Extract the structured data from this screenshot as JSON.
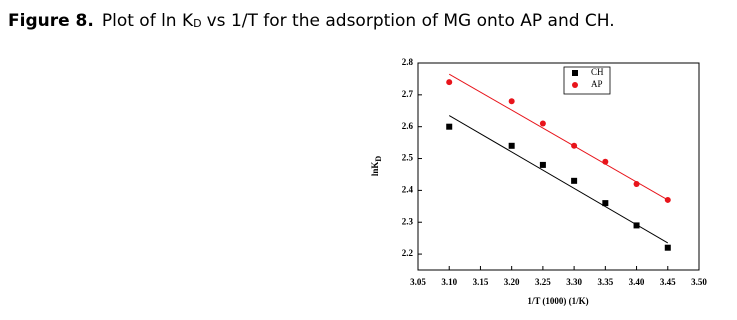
{
  "caption": {
    "label": "Figure 8.",
    "text": "Plot of ln K",
    "sub": "D",
    "text_end": "vs 1/T for the adsorption of MG onto AP and CH."
  },
  "chart_data": {
    "type": "scatter",
    "x_label": "1/T (1000) (1/K)",
    "y_label": "lnK",
    "y_label_sub": "D",
    "x": [
      3.1,
      3.2,
      3.25,
      3.3,
      3.35,
      3.4,
      3.45
    ],
    "series": [
      {
        "name": "CH",
        "color": "#000000",
        "marker": "square",
        "values": [
          2.6,
          2.54,
          2.48,
          2.43,
          2.36,
          2.29,
          2.22
        ],
        "fit": {
          "x": [
            3.1,
            3.45
          ],
          "values": [
            2.635,
            2.235
          ]
        }
      },
      {
        "name": "AP",
        "color": "#e8141b",
        "marker": "circle",
        "values": [
          2.74,
          2.68,
          2.61,
          2.54,
          2.49,
          2.42,
          2.37
        ],
        "fit": {
          "x": [
            3.1,
            3.45
          ],
          "values": [
            2.765,
            2.37
          ]
        }
      }
    ],
    "xlim": [
      3.05,
      3.5
    ],
    "ylim": [
      2.15,
      2.8
    ],
    "xticks": [
      3.05,
      {
        "value": 3.1,
        "label": "3.10"
      },
      3.15,
      {
        "value": 3.2,
        "label": "3.20"
      },
      3.25,
      {
        "value": 3.3,
        "label": "3.30"
      },
      3.35,
      {
        "value": 3.4,
        "label": "3.40"
      },
      3.45,
      {
        "value": 3.5,
        "label": "3.50"
      }
    ],
    "yticks": [
      2.2,
      2.3,
      2.4,
      2.5,
      2.6,
      2.7,
      2.8
    ],
    "grid": false,
    "legend": "upper right"
  }
}
